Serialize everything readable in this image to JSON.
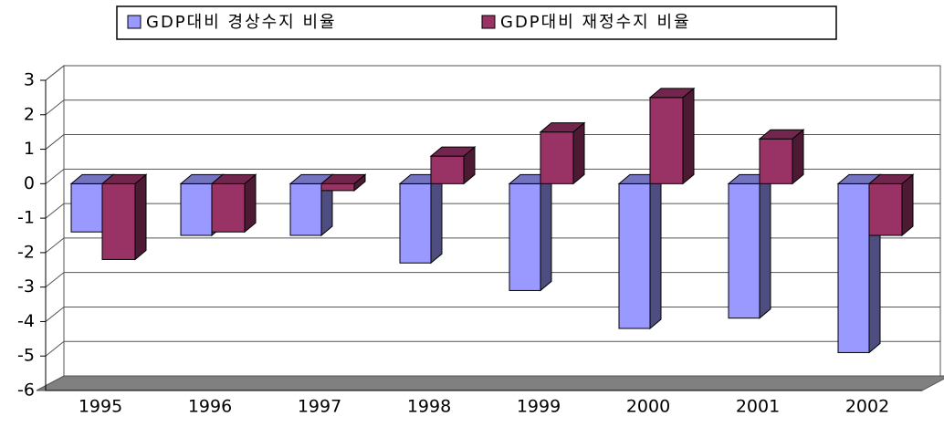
{
  "chart_data": {
    "type": "bar3d",
    "categories": [
      "1995",
      "1996",
      "1997",
      "1998",
      "1999",
      "2000",
      "2001",
      "2002"
    ],
    "series": [
      {
        "name": "GDP대비 경상수지 비율",
        "color": "#9999ff",
        "values": [
          -1.4,
          -1.5,
          -1.5,
          -2.3,
          -3.1,
          -4.2,
          -3.9,
          -4.9
        ]
      },
      {
        "name": "GDP대비 재정수지 비율",
        "color": "#993366",
        "values": [
          -2.2,
          -1.4,
          -0.2,
          0.8,
          1.5,
          2.5,
          1.3,
          -1.5
        ]
      }
    ],
    "ylim": [
      -6,
      3
    ],
    "yticks": [
      -6,
      -5,
      -4,
      -3,
      -2,
      -1,
      0,
      1,
      2,
      3
    ],
    "grid": true,
    "legend": "top"
  }
}
